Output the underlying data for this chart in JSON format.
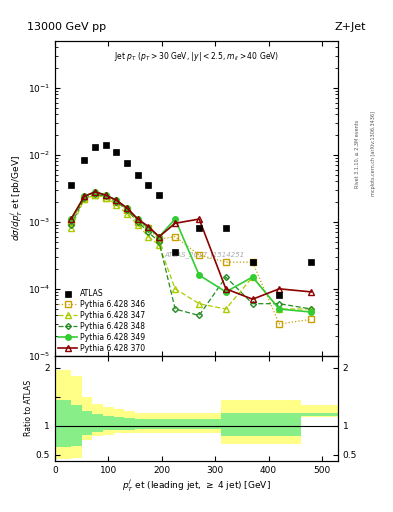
{
  "title_left": "13000 GeV pp",
  "title_right": "Z+Jet",
  "annotation": "Jet p_{T} (p_{T} > 30 GeV, |y| < 2.5, m_{ll} > 40 GeV)",
  "watermark": "ATLAS_2017_I1514251",
  "rivet_label": "Rivet 3.1.10, ≥ 2.3M events",
  "mcplots_label": "mcplots.cern.ch [arXiv:1306.3436]",
  "ylabel_main": "dσ/dp_{T}^{j} et [pb/GeV]",
  "xlabel": "p_{T}^{j} et (leading jet, ≥ 4 jet) [GeV]",
  "ylabel_ratio": "Ratio to ATLAS",
  "ylim_main": [
    1e-05,
    0.5
  ],
  "ylim_ratio": [
    0.4,
    2.2
  ],
  "xlim": [
    0,
    530
  ],
  "atlas_x": [
    30,
    55,
    75,
    95,
    115,
    135,
    155,
    175,
    195,
    225,
    270,
    320,
    370,
    420,
    480
  ],
  "atlas_y": [
    0.0035,
    0.0085,
    0.013,
    0.014,
    0.011,
    0.0075,
    0.005,
    0.0035,
    0.0025,
    0.00035,
    0.0008,
    0.0008,
    0.00025,
    8e-05,
    0.00025
  ],
  "p346_x": [
    30,
    55,
    75,
    95,
    115,
    135,
    155,
    175,
    195,
    225,
    270,
    320,
    370,
    420,
    480
  ],
  "p346_y": [
    0.001,
    0.0022,
    0.0025,
    0.0023,
    0.002,
    0.0015,
    0.001,
    0.0008,
    0.00055,
    0.0006,
    0.00032,
    0.00025,
    0.00025,
    3e-05,
    3.5e-05
  ],
  "p347_x": [
    30,
    55,
    75,
    95,
    115,
    135,
    155,
    175,
    195,
    225,
    270,
    320,
    370,
    420,
    480
  ],
  "p347_y": [
    0.0008,
    0.0022,
    0.0025,
    0.0023,
    0.0018,
    0.0013,
    0.0009,
    0.0006,
    0.00045,
    0.0001,
    6e-05,
    5e-05,
    0.00015,
    5e-05,
    5e-05
  ],
  "p348_x": [
    30,
    55,
    75,
    95,
    115,
    135,
    155,
    175,
    195,
    225,
    270,
    320,
    370,
    420,
    480
  ],
  "p348_y": [
    0.0009,
    0.0023,
    0.0026,
    0.0024,
    0.002,
    0.0015,
    0.001,
    0.0007,
    0.0005,
    5e-05,
    4e-05,
    0.00015,
    6e-05,
    6e-05,
    5e-05
  ],
  "p349_x": [
    30,
    55,
    75,
    95,
    115,
    135,
    155,
    175,
    195,
    225,
    270,
    320,
    370,
    420,
    480
  ],
  "p349_y": [
    0.0011,
    0.0024,
    0.0028,
    0.0025,
    0.0021,
    0.0016,
    0.0011,
    0.0008,
    0.0006,
    0.0011,
    0.00016,
    9e-05,
    0.00015,
    5e-05,
    4.5e-05
  ],
  "p370_x": [
    30,
    55,
    75,
    95,
    115,
    135,
    155,
    175,
    195,
    225,
    270,
    320,
    370,
    420,
    480
  ],
  "p370_y": [
    0.0011,
    0.0024,
    0.0028,
    0.0025,
    0.0021,
    0.0016,
    0.0011,
    0.00085,
    0.0006,
    0.00095,
    0.0011,
    0.0001,
    7e-05,
    0.0001,
    9e-05
  ],
  "color_atlas": "#000000",
  "color_p346": "#c8a000",
  "color_p347": "#aacc00",
  "color_p348": "#228b22",
  "color_p349": "#32cd32",
  "color_p370": "#8b0000",
  "ratio_yellow_lo": [
    0.43,
    0.45,
    0.75,
    0.82,
    0.85,
    0.87,
    0.87,
    0.87,
    0.87,
    0.87,
    0.87,
    0.87,
    0.68,
    0.68,
    1.15
  ],
  "ratio_yellow_hi": [
    1.95,
    1.85,
    1.5,
    1.38,
    1.33,
    1.28,
    1.25,
    1.22,
    1.22,
    1.22,
    1.22,
    1.22,
    1.45,
    1.45,
    1.35
  ],
  "ratio_green_lo": [
    0.63,
    0.65,
    0.85,
    0.9,
    0.92,
    0.93,
    0.93,
    0.94,
    0.94,
    0.94,
    0.94,
    0.94,
    0.82,
    0.82,
    1.17
  ],
  "ratio_green_hi": [
    1.45,
    1.35,
    1.25,
    1.2,
    1.17,
    1.15,
    1.14,
    1.12,
    1.12,
    1.12,
    1.12,
    1.12,
    1.22,
    1.22,
    1.22
  ],
  "ratio_bin_edges": [
    0,
    30,
    50,
    70,
    90,
    110,
    130,
    150,
    170,
    190,
    210,
    260,
    310,
    360,
    460,
    530
  ]
}
